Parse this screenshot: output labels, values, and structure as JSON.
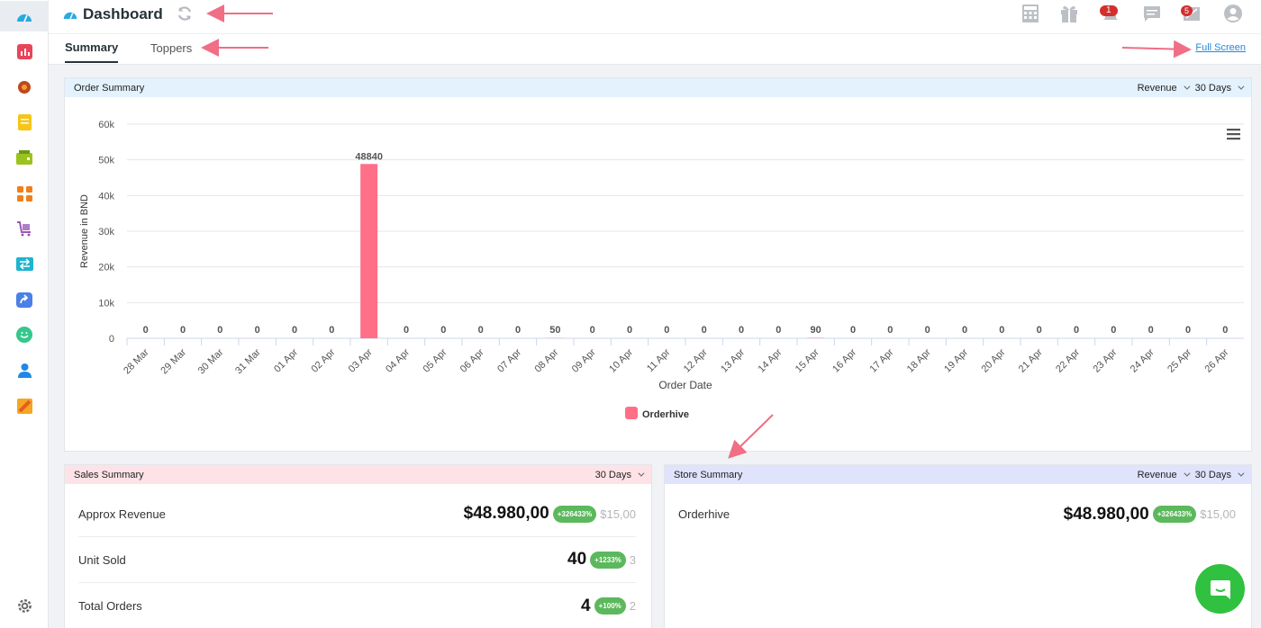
{
  "app": {
    "title": "Dashboard"
  },
  "tabs": [
    {
      "label": "Summary"
    },
    {
      "label": "Toppers"
    }
  ],
  "full_screen_label": "Full Screen",
  "notifications": {
    "alerts_count": "1",
    "messages_count": "5"
  },
  "sidebar": {
    "icons": [
      "dashboard-icon",
      "reports-icon",
      "settings-gear-icon",
      "notes-icon",
      "inventory-icon",
      "apps-grid-icon",
      "cart-icon",
      "transfer-icon",
      "share-icon",
      "smile-icon",
      "user-icon",
      "tag-icon"
    ],
    "settings_icon": "settings-icon"
  },
  "order_summary": {
    "title": "Order Summary",
    "metric_select": "Revenue",
    "range_select": "30 Days"
  },
  "chart_data": {
    "type": "bar",
    "categories": [
      "28 Mar",
      "29 Mar",
      "30 Mar",
      "31 Mar",
      "01 Apr",
      "02 Apr",
      "03 Apr",
      "04 Apr",
      "05 Apr",
      "06 Apr",
      "07 Apr",
      "08 Apr",
      "09 Apr",
      "10 Apr",
      "11 Apr",
      "12 Apr",
      "13 Apr",
      "14 Apr",
      "15 Apr",
      "16 Apr",
      "17 Apr",
      "18 Apr",
      "19 Apr",
      "20 Apr",
      "21 Apr",
      "22 Apr",
      "23 Apr",
      "24 Apr",
      "25 Apr",
      "26 Apr"
    ],
    "series": [
      {
        "name": "Orderhive",
        "values": [
          0,
          0,
          0,
          0,
          0,
          0,
          48840,
          0,
          0,
          0,
          0,
          50,
          0,
          0,
          0,
          0,
          0,
          0,
          90,
          0,
          0,
          0,
          0,
          0,
          0,
          0,
          0,
          0,
          0,
          0
        ]
      }
    ],
    "data_labels": [
      "0",
      "0",
      "0",
      "0",
      "0",
      "0",
      "48840",
      "0",
      "0",
      "0",
      "0",
      "50",
      "0",
      "0",
      "0",
      "0",
      "0",
      "0",
      "90",
      "0",
      "0",
      "0",
      "0",
      "0",
      "0",
      "0",
      "0",
      "0",
      "0",
      "0"
    ],
    "xlabel": "Order Date",
    "ylabel": "Revenue in BND",
    "ylim": [
      0,
      60000
    ],
    "y_ticks": [
      "0",
      "10k",
      "20k",
      "30k",
      "40k",
      "50k",
      "60k"
    ],
    "grid": true,
    "legend": "bottom",
    "color": "#ff6f87"
  },
  "sales_summary": {
    "title": "Sales Summary",
    "range_select": "30 Days",
    "rows": [
      {
        "label": "Approx Revenue",
        "value": "$48.980,00",
        "change": "+326433%",
        "previous": "$15,00"
      },
      {
        "label": "Unit Sold",
        "value": "40",
        "change": "+1233%",
        "previous": "3"
      },
      {
        "label": "Total Orders",
        "value": "4",
        "change": "+100%",
        "previous": "2"
      }
    ]
  },
  "store_summary": {
    "title": "Store Summary",
    "metric_select": "Revenue",
    "range_select": "30 Days",
    "rows": [
      {
        "label": "Orderhive",
        "value": "$48.980,00",
        "change": "+326433%",
        "previous": "$15,00"
      }
    ]
  },
  "colors": {
    "accent": "#ff6f87",
    "order_head_bg": "#e3f2fd",
    "sales_head_bg": "#fde3e7",
    "store_head_bg": "#dfe3fb",
    "badge_green": "#5cb85c",
    "chat_green": "#2fc13f",
    "arrow": "#f06e86"
  }
}
